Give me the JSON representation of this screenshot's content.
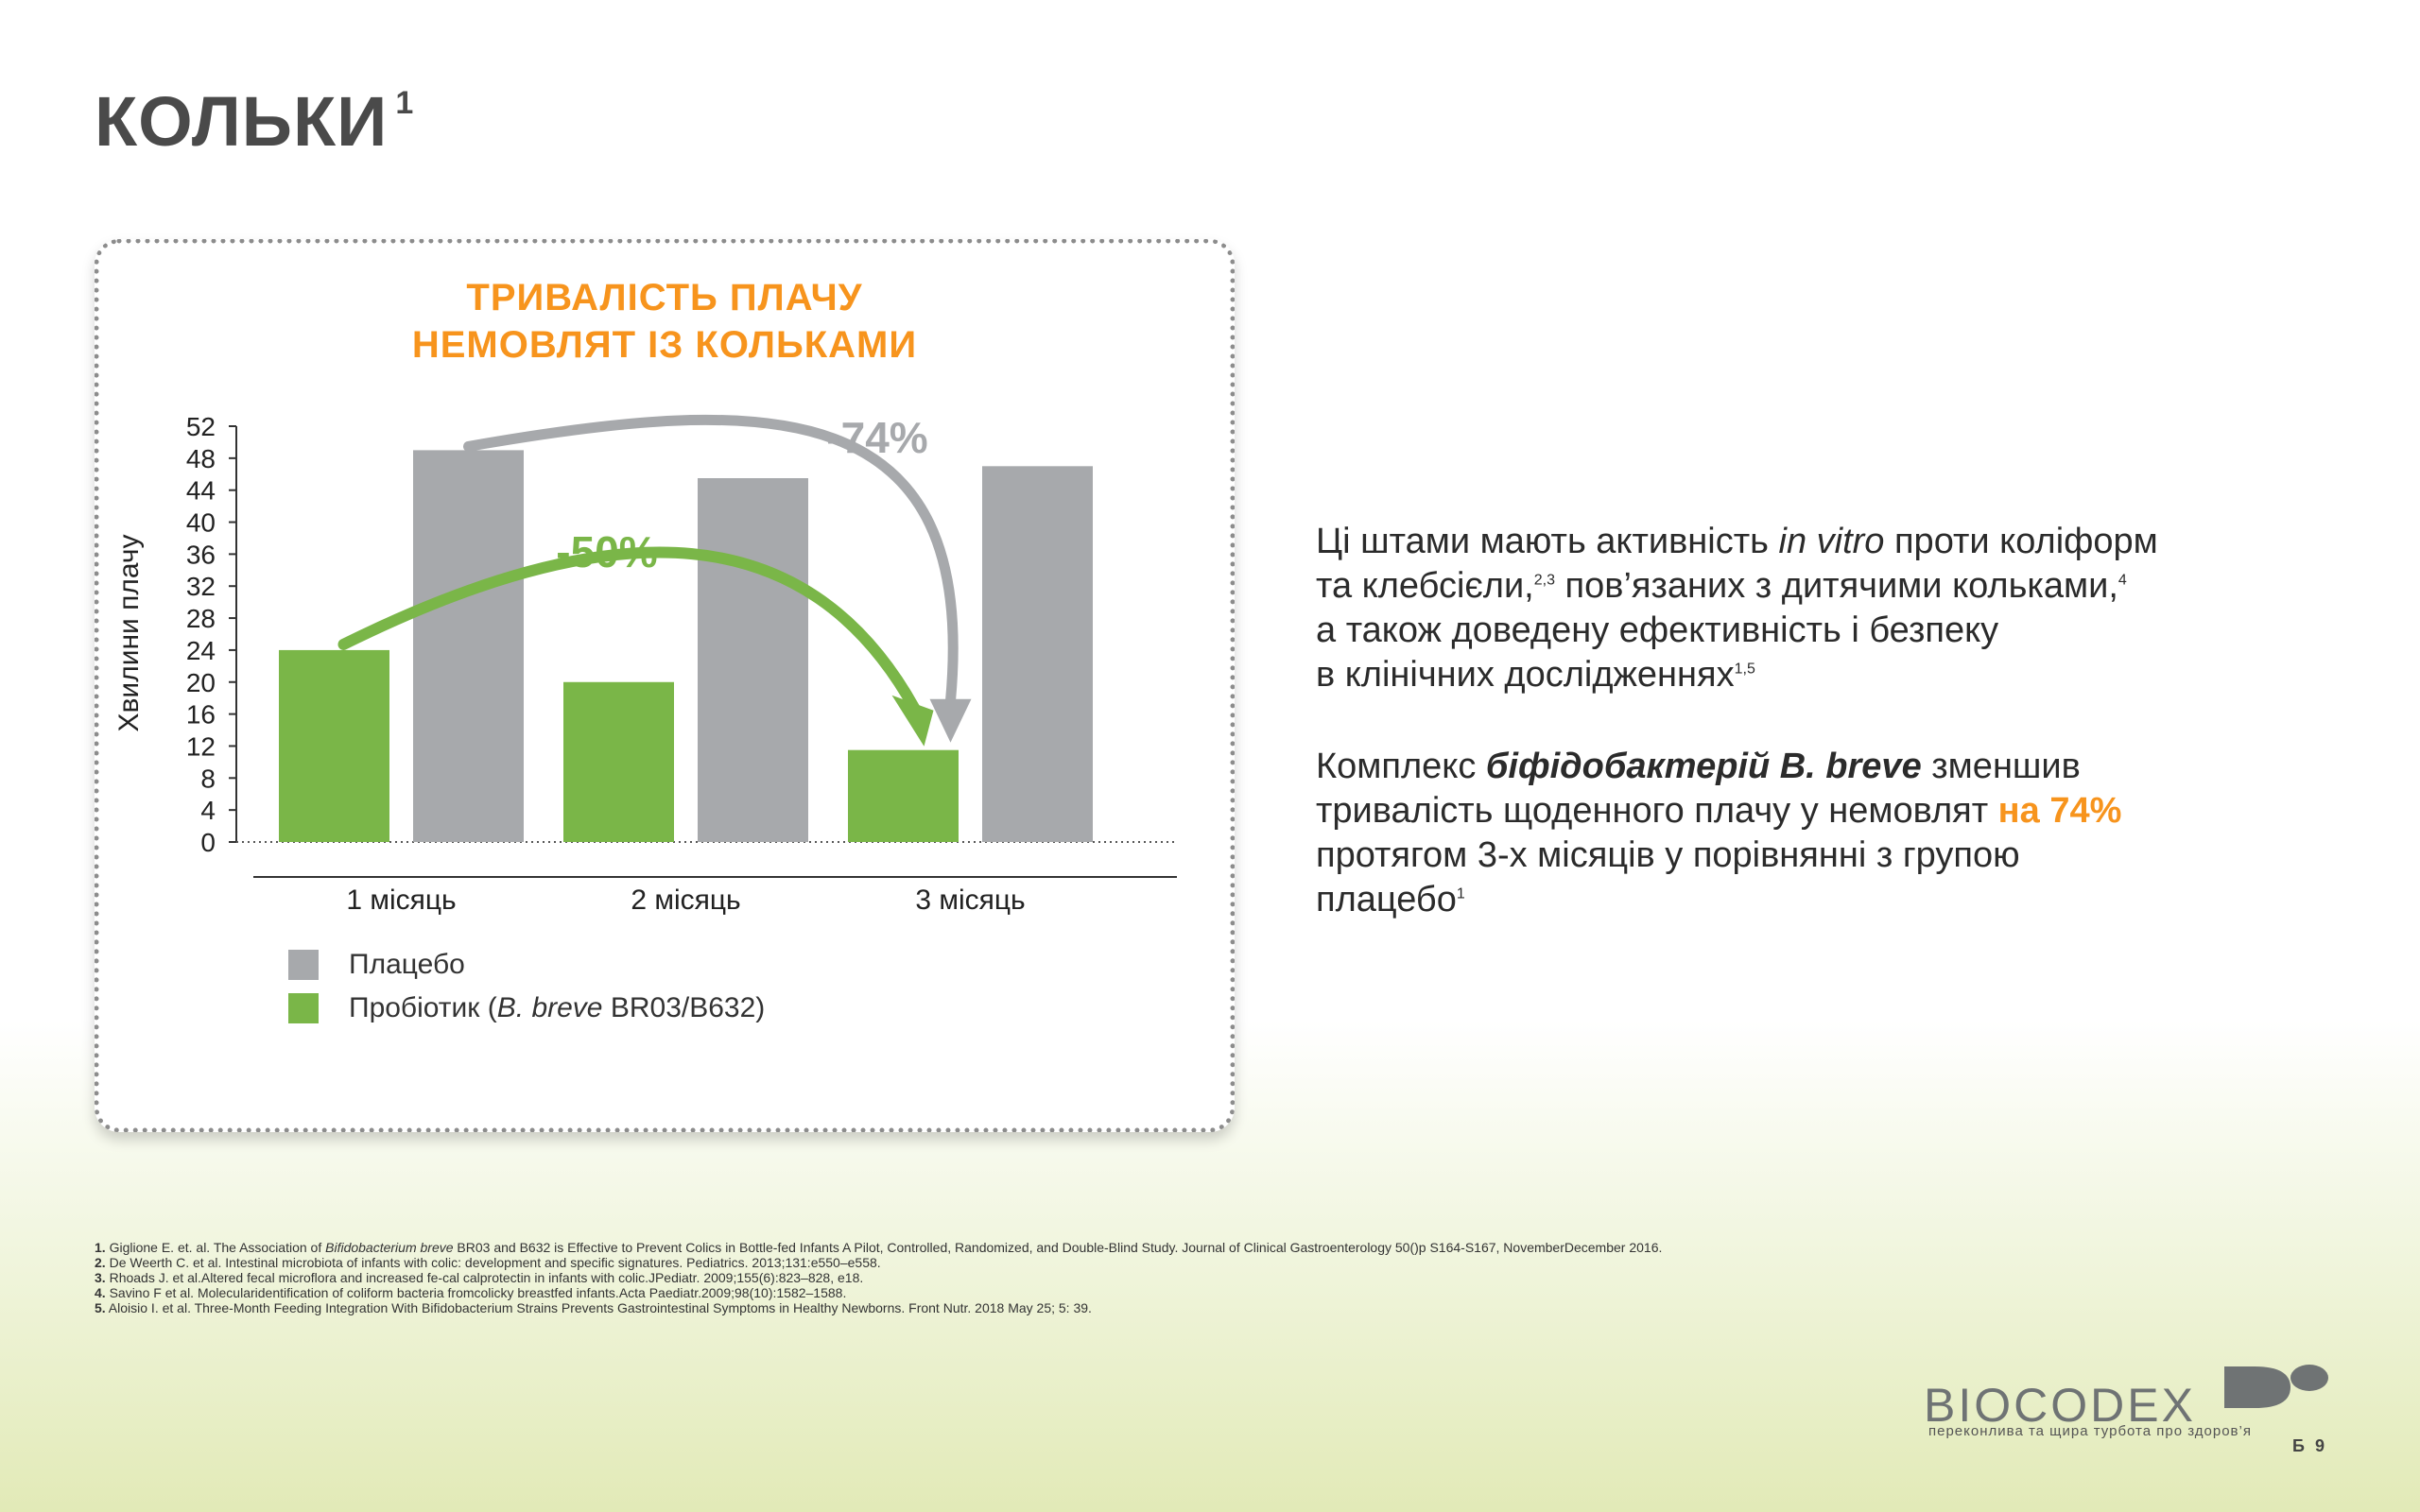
{
  "slide": {
    "title": "КОЛЬКИ",
    "title_sup": "1"
  },
  "chart_data": {
    "type": "bar",
    "title_lines": [
      "ТРИВАЛІСТЬ ПЛАЧУ",
      "НЕМОВЛЯТ ІЗ КОЛЬКАМИ"
    ],
    "ylabel": "Хвилини плачу",
    "xlabel": "",
    "ylim": [
      0,
      52
    ],
    "yticks": [
      0,
      4,
      8,
      12,
      16,
      20,
      24,
      28,
      32,
      36,
      40,
      44,
      48,
      52
    ],
    "categories": [
      "1 місяць",
      "2 місяць",
      "3 місяць"
    ],
    "series": [
      {
        "name": "Пробіотик (B. breve BR03/B632)",
        "color": "#7ab648",
        "values": [
          24,
          20,
          11.5
        ]
      },
      {
        "name": "Плацебо",
        "color": "#a7a9ac",
        "values": [
          49,
          45.5,
          47
        ]
      }
    ],
    "annotations": [
      {
        "text": "-50%",
        "color": "#7ab648"
      },
      {
        "text": "-74%",
        "color": "#a7a9ac"
      }
    ],
    "legend_position": "bottom-left"
  },
  "legend": {
    "placebo": "Плацебо",
    "probiotic_prefix": "Пробіотик (",
    "probiotic_italic": "B. breve",
    "probiotic_suffix": " BR03/B632)"
  },
  "text": {
    "p1_a": "Ці штами мають активність ",
    "p1_italic": "in vitro",
    "p1_b": " проти коліформ",
    "p1_c": "та клебсієли,",
    "p1_sup1": "2,3",
    "p1_d": " пов’язаних з дитячими кольками,",
    "p1_sup2": "4",
    "p1_e": "а також доведену ефективність і безпеку",
    "p1_f": "в клінічних дослідженнях",
    "p1_sup3": "1,5",
    "p2_a": "Комплекс ",
    "p2_bold_italic": "біфідобактерій B. breve",
    "p2_b": " зменшив",
    "p2_c": "тривалість щоденного плачу у немовлят ",
    "p2_highlight": "на 74%",
    "p2_d": "протягом 3-х місяців у порівнянні з групою",
    "p2_e": "плацебо",
    "p2_sup": "1"
  },
  "references": {
    "r1_num": "1.",
    "r1_a": " Giglione E. et. al. The Association of ",
    "r1_italic": "Bifidobacterium breve",
    "r1_b": " BR03 and B632 is Effective to Prevent Colics in Bottle-fed Infants A Pilot, Controlled, Randomized, and Double-Blind Study. Journal of Clinical Gastroenterology 50()p S164-S167, NovemberDecember 2016.",
    "r2_num": "2.",
    "r2": " De Weerth C. et al. Intestinal microbiota of infants with colic: development and specific signatures. Pediatrics. 2013;131:e550–e558.",
    "r3_num": "3.",
    "r3": " Rhoads J. et al.Altered fecal microflora and increased fe-cal calprotectin in infants with colic.JPediatr. 2009;155(6):823–828, e18.",
    "r4_num": "4.",
    "r4": " Savino F et al. Molecularidentification of coliform bacteria fromcolicky breastfed infants.Acta Paediatr.2009;98(10):1582–1588.",
    "r5_num": "5.",
    "r5": " Aloisio I. et al. Three-Month Feeding Integration With Bifidobacterium Strains Prevents Gastrointestinal Symptoms in Healthy Newborns. Front Nutr. 2018 May 25; 5: 39."
  },
  "brand": {
    "name": "BIOCODEX",
    "tagline": "переконлива та щира турбота про здоров’я",
    "page": "Б 9"
  }
}
